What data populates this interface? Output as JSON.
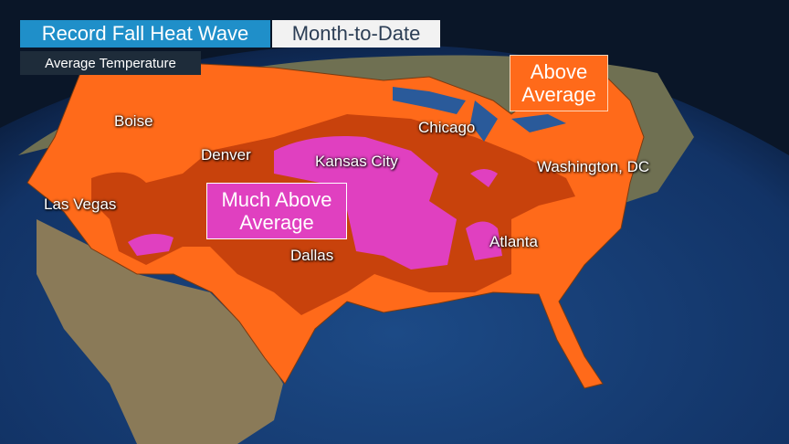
{
  "header": {
    "title": "Record Fall Heat Wave",
    "tag": "Month-to-Date",
    "subtitle": "Average Temperature"
  },
  "legend": {
    "above": "Above Average",
    "much_above": "Much Above Average"
  },
  "cities": [
    "Boise",
    "Denver",
    "Las Vegas",
    "Kansas City",
    "Chicago",
    "Washington, DC",
    "Dallas",
    "Atlanta"
  ]
}
